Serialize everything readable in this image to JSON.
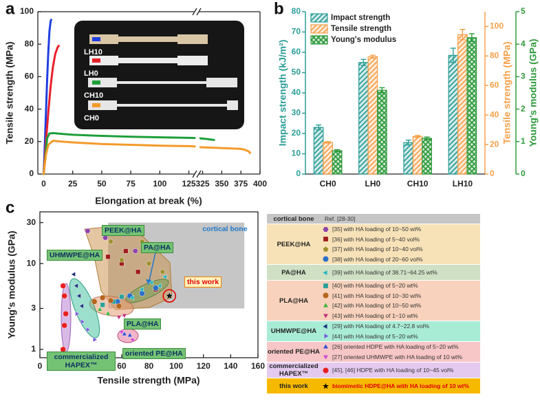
{
  "chart_data": [
    {
      "type": "line",
      "panel": "a",
      "xlabel": "Elongation at break (%)",
      "ylabel": "Tensile strength (MPa)",
      "xlim": [
        -5,
        400
      ],
      "x_break": [
        130,
        320
      ],
      "xticks": [
        0,
        25,
        50,
        75,
        100,
        125,
        325,
        350,
        375,
        400
      ],
      "ylim": [
        0,
        100
      ],
      "yticks": [
        0,
        20,
        40,
        60,
        80,
        100
      ],
      "series": [
        {
          "name": "LH10",
          "color": "#1f3fe0",
          "x": [
            0,
            0.5,
            1,
            2,
            3,
            4,
            5,
            6,
            6.5
          ],
          "values": [
            0,
            8,
            18,
            38,
            58,
            75,
            88,
            94,
            95
          ]
        },
        {
          "name": "LH0",
          "color": "#e8202a",
          "x": [
            0,
            1,
            2,
            4,
            6,
            8,
            10,
            12,
            13
          ],
          "values": [
            0,
            10,
            20,
            38,
            54,
            66,
            74,
            78,
            79
          ]
        },
        {
          "name": "CH10",
          "color": "#1e9e3a",
          "x": [
            0,
            1,
            2,
            3,
            5,
            8,
            15,
            25,
            50,
            75,
            100,
            125,
            130,
            322,
            330,
            340
          ],
          "values": [
            0,
            7,
            15,
            22,
            25,
            25.2,
            24.8,
            24.2,
            23.5,
            23,
            22.6,
            22.3,
            22.2,
            22,
            21.6,
            21
          ]
        },
        {
          "name": "CH0",
          "color": "#f39a2a",
          "x": [
            0,
            1,
            2,
            4,
            8,
            15,
            25,
            50,
            75,
            100,
            125,
            130,
            322,
            350,
            375,
            380,
            385,
            387
          ],
          "values": [
            0,
            6,
            12,
            18,
            20.5,
            20,
            19.5,
            18.5,
            18,
            17.5,
            17.2,
            17,
            16.5,
            16,
            15.5,
            15,
            14,
            13
          ]
        }
      ]
    },
    {
      "type": "bar",
      "panel": "b",
      "categories": [
        "CH0",
        "LH0",
        "CH10",
        "LH10"
      ],
      "ylabel": "Impact strength (kJ/m²)",
      "y2label": "Tensile strength (MPa)",
      "y3label": "Young's modulus (GPa)",
      "ylim": [
        0,
        80
      ],
      "yticks": [
        0,
        10,
        20,
        30,
        40,
        50,
        60,
        70,
        80
      ],
      "y2lim": [
        0,
        110
      ],
      "y2ticks": [
        0,
        20,
        40,
        60,
        80,
        100
      ],
      "y3lim": [
        0,
        5
      ],
      "y3ticks": [
        0,
        1,
        2,
        3,
        4,
        5
      ],
      "legend": "upper left",
      "series": [
        {
          "name": "Impact strength",
          "color": "#2a9d96",
          "pattern": "hatch",
          "axis": "y",
          "values": [
            23,
            55,
            15.5,
            58.5
          ],
          "errors": [
            1.2,
            1.5,
            1.2,
            3.5
          ]
        },
        {
          "name": "Tensile strength",
          "color": "#f5a04a",
          "pattern": "hatch",
          "axis": "y2",
          "values": [
            21.5,
            79.5,
            25.5,
            94.5
          ],
          "errors": [
            0.5,
            1,
            0.6,
            3.5
          ]
        },
        {
          "name": "Young's modulus",
          "color": "#2e9a3c",
          "pattern": "crosshatch",
          "axis": "y3",
          "values": [
            0.72,
            2.58,
            1.1,
            4.2
          ],
          "errors": [
            0.03,
            0.08,
            0.04,
            0.12
          ]
        }
      ]
    },
    {
      "type": "scatter",
      "panel": "c",
      "xlabel": "Tensile strength (MPa)",
      "ylabel": "Young's modulus (GPa)",
      "xlim": [
        0,
        160
      ],
      "xticks": [
        0,
        20,
        40,
        60,
        80,
        100,
        120,
        140,
        160
      ],
      "ylim": [
        0.8,
        40
      ],
      "yticks": [
        1,
        3,
        10,
        30
      ],
      "yscale": "log",
      "cortical_bone": {
        "name": "cortical bone",
        "ref": "Ref. [28-30]",
        "color": "#c6c6c6",
        "xlim": [
          50,
          150
        ],
        "ylim": [
          3,
          30
        ]
      },
      "groups": [
        {
          "name": "PEEK@HA",
          "color": "#f7e2b8"
        },
        {
          "name": "PA@HA",
          "color": "#cfe0c4"
        },
        {
          "name": "PLA@HA",
          "color": "#f8d2bc"
        },
        {
          "name": "UHMWPE@HA",
          "color": "#a9ecd6"
        },
        {
          "name": "oriented PE@HA",
          "color": "#f7c6c6"
        },
        {
          "name": "commercialized HAPEX™",
          "color": "#e4caef"
        },
        {
          "name": "this work",
          "color": "#f7b900"
        }
      ],
      "series": [
        {
          "name": "[35] with HA loading of 10~50 wt%",
          "group": 0,
          "marker": "hexagon",
          "color": "#8e44ad",
          "x": [
            35,
            48,
            62,
            70,
            90
          ],
          "values": [
            24,
            20,
            22,
            14,
            15
          ]
        },
        {
          "name": "[36] with HA loading of 5~40 vol%",
          "group": 0,
          "marker": "square",
          "color": "#a01c1c",
          "x": [
            50,
            60,
            63,
            72,
            85
          ],
          "values": [
            12,
            10,
            14,
            8,
            5
          ]
        },
        {
          "name": "[37] with HA loading of 10~40 vol%",
          "group": 0,
          "marker": "pentagon",
          "color": "#a09030",
          "x": [
            52,
            60,
            75,
            80,
            90
          ],
          "values": [
            18,
            11,
            18,
            10,
            8
          ]
        },
        {
          "name": "[38] with HA loading of 20~60 vol%",
          "group": 0,
          "marker": "circle",
          "color": "#2a6fc9",
          "x": [
            57,
            66,
            75,
            85
          ],
          "values": [
            3.6,
            4.2,
            4.5,
            5.2
          ]
        },
        {
          "name": "[39] with HA loading of 38.71~64.25 wt%",
          "group": 1,
          "marker": "triangle-left",
          "color": "#1fb5c0",
          "x": [
            68,
            75,
            82,
            88,
            92
          ],
          "values": [
            4,
            5,
            6,
            5.5,
            7
          ]
        },
        {
          "name": "[40] with HA loading of 5~20 wt%",
          "group": 2,
          "marker": "square",
          "color": "#2aa19a",
          "x": [
            46,
            54,
            60
          ],
          "values": [
            3.3,
            3.6,
            4.1
          ]
        },
        {
          "name": "[41] with HA loading of 10~30 wt%",
          "group": 2,
          "marker": "circle",
          "color": "#b5651d",
          "x": [
            40,
            46,
            52,
            58
          ],
          "values": [
            3.6,
            4,
            3.7,
            3.2
          ]
        },
        {
          "name": "[42] with HA loading of 10~50 wt%",
          "group": 2,
          "marker": "triangle-up",
          "color": "#3cb43c",
          "x": [
            44,
            50
          ],
          "values": [
            2.9,
            2.6
          ]
        },
        {
          "name": "[43] with HA loading of 1~10 wt%",
          "group": 2,
          "marker": "triangle-down",
          "color": "#c0307a",
          "x": [
            58,
            62,
            64
          ],
          "values": [
            2.4,
            2.5,
            2.2
          ]
        },
        {
          "name": "[29] with HA loading of 4.7~22.8 vol%",
          "group": 3,
          "marker": "triangle-left",
          "color": "#1f2f7f",
          "x": [
            25,
            27,
            29,
            31
          ],
          "values": [
            7.5,
            5.5,
            4.2,
            3.2
          ]
        },
        {
          "name": "[44] with HA loading of 5~20 wt%",
          "group": 3,
          "marker": "triangle-right",
          "color": "#7b5ce0",
          "x": [
            27,
            31,
            35,
            40
          ],
          "values": [
            2.6,
            2.1,
            1.7,
            1.3
          ]
        },
        {
          "name": "[26] oriented HDPE with HA loading of 5~20 wt%",
          "group": 4,
          "marker": "triangle-up",
          "color": "#2f4fd0",
          "x": [
            62,
            66
          ],
          "values": [
            1.5,
            1.45
          ]
        },
        {
          "name": "[27] oriented UHMWPE with HA loading of 10 wt%",
          "group": 4,
          "marker": "triangle-down",
          "color": "#d04ad0",
          "x": [
            60,
            68
          ],
          "values": [
            1.6,
            1.3
          ]
        },
        {
          "name": "[45], [46] HDPE with HA loading of 10~45 vol%",
          "group": 5,
          "marker": "circle",
          "color": "#e82020",
          "x": [
            17,
            18,
            19,
            18,
            17
          ],
          "values": [
            1,
            1.9,
            2.6,
            4.2,
            5.5
          ]
        },
        {
          "name": "biomimetic HDPE@HA with HA loading of 10 wt%",
          "group": 6,
          "marker": "star",
          "color": "#000000",
          "text_color": "#e00000",
          "highlight": true,
          "x": [
            95
          ],
          "values": [
            4.2
          ]
        }
      ]
    }
  ]
}
